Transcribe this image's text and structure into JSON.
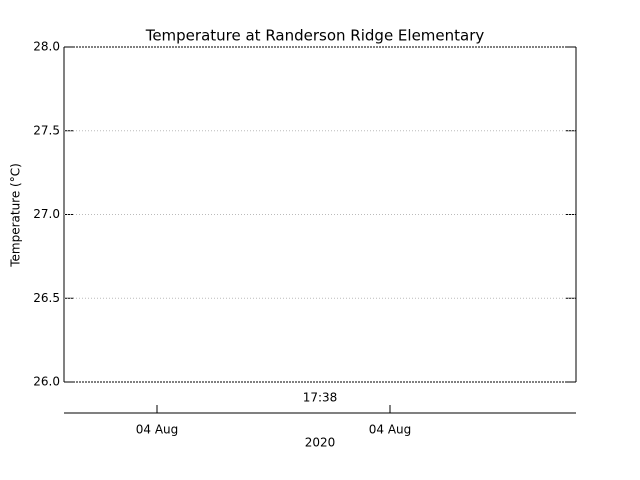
{
  "chart_data": {
    "type": "line",
    "title": "Temperature at Randerson Ridge Elementary",
    "ylabel": "Temperature (°C)",
    "ylim": [
      26.0,
      28.0
    ],
    "yticks": [
      {
        "value": 26.0,
        "label": "26.0"
      },
      {
        "value": 26.5,
        "label": "26.5"
      },
      {
        "value": 27.0,
        "label": "27.0"
      },
      {
        "value": 27.5,
        "label": "27.5"
      },
      {
        "value": 28.0,
        "label": "28.0"
      }
    ],
    "grid": true,
    "series": [],
    "time_label": "17:38",
    "date_ticks": [
      "04 Aug",
      "04 Aug"
    ],
    "year_label": "2020"
  }
}
